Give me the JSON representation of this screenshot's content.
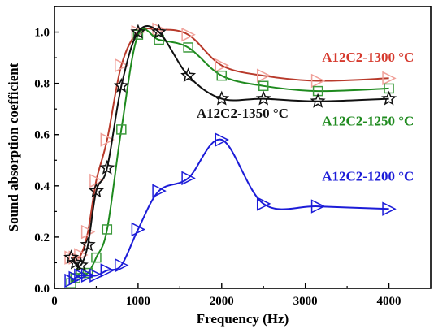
{
  "chart_data": {
    "type": "line",
    "xlabel": "Frequency (Hz)",
    "ylabel": "Sound absorption coefficient",
    "xlim": [
      0,
      4500
    ],
    "ylim": [
      0,
      1.1
    ],
    "xticks": [
      0,
      1000,
      2000,
      3000,
      4000
    ],
    "yticks": [
      0.0,
      0.2,
      0.4,
      0.6,
      0.8,
      1.0
    ],
    "xtick_labels": [
      "0",
      "1000",
      "2000",
      "3000",
      "4000"
    ],
    "ytick_labels": [
      "0.0",
      "0.2",
      "0.4",
      "0.6",
      "0.8",
      "1.0"
    ],
    "grid": false,
    "series": [
      {
        "name": "A12C2-1300 °C",
        "color": "#b83a2b",
        "marker": "triangle-right",
        "marker_color": "#f0a099",
        "x": [
          200,
          250,
          315,
          400,
          500,
          630,
          800,
          1000,
          1250,
          1600,
          2000,
          2500,
          3150,
          4000
        ],
        "y": [
          0.12,
          0.12,
          0.13,
          0.22,
          0.42,
          0.58,
          0.87,
          1.0,
          1.01,
          0.99,
          0.87,
          0.83,
          0.81,
          0.82
        ]
      },
      {
        "name": "A12C2-1250 °C",
        "color": "#1e8a1e",
        "marker": "square",
        "marker_color": "#3c9a3c",
        "x": [
          200,
          250,
          315,
          400,
          500,
          630,
          800,
          1000,
          1250,
          1600,
          2000,
          2500,
          3150,
          4000
        ],
        "y": [
          0.02,
          0.04,
          0.06,
          0.06,
          0.12,
          0.23,
          0.62,
          0.99,
          0.97,
          0.94,
          0.83,
          0.79,
          0.77,
          0.78
        ]
      },
      {
        "name": "A12C2-1350 °C",
        "color": "#111111",
        "marker": "star",
        "marker_color": "#111111",
        "x": [
          200,
          250,
          315,
          400,
          500,
          630,
          800,
          1000,
          1250,
          1600,
          2000,
          2500,
          3150,
          4000
        ],
        "y": [
          0.12,
          0.1,
          0.09,
          0.17,
          0.38,
          0.47,
          0.79,
          1.0,
          1.0,
          0.83,
          0.74,
          0.74,
          0.73,
          0.74
        ]
      },
      {
        "name": "A12C2-1200 °C",
        "color": "#1c1cd8",
        "marker": "triangle-right",
        "marker_color": "#1c1cd8",
        "x": [
          200,
          250,
          315,
          400,
          500,
          630,
          800,
          1000,
          1250,
          1600,
          2000,
          2500,
          3150,
          4000
        ],
        "y": [
          0.03,
          0.04,
          0.05,
          0.05,
          0.05,
          0.07,
          0.09,
          0.23,
          0.38,
          0.43,
          0.58,
          0.33,
          0.32,
          0.31
        ]
      }
    ],
    "annotations": [
      {
        "text": "A12C2-1300 °C",
        "color": "#d63a2e",
        "at": [
          3200,
          0.885
        ]
      },
      {
        "text": "A12C2-1250 °C",
        "color": "#1e8a1e",
        "at": [
          3200,
          0.635
        ]
      },
      {
        "text": "A12C2-1350 °C",
        "color": "#111111",
        "at": [
          1700,
          0.665
        ]
      },
      {
        "text": "A12C2-1200 °C",
        "color": "#1c1cd8",
        "at": [
          3200,
          0.42
        ]
      }
    ]
  }
}
